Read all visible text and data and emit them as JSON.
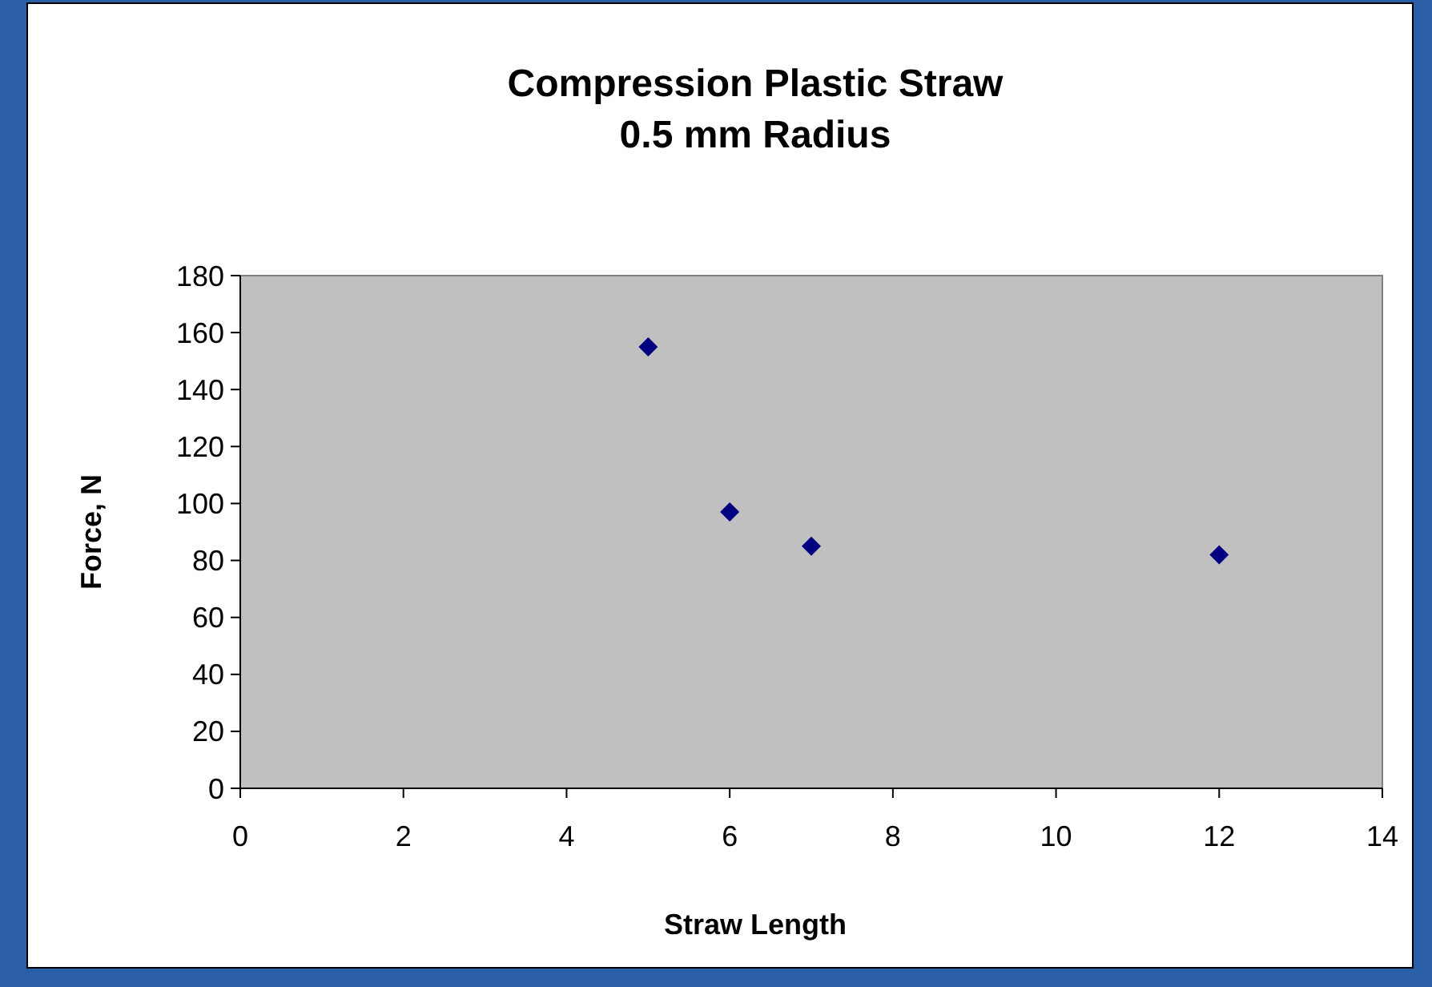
{
  "chart_data": {
    "type": "scatter",
    "title": "Compression Plastic Straw\n0.5 mm Radius",
    "xlabel": "Straw Length",
    "ylabel": "Force, N",
    "x": [
      5,
      6,
      7,
      12
    ],
    "values": [
      155,
      97,
      85,
      82
    ],
    "color": "#000080",
    "marker": "diamond",
    "xlim": [
      0,
      14
    ],
    "xticks": [
      0,
      2,
      4,
      6,
      8,
      10,
      12,
      14
    ],
    "ylim": [
      0,
      180
    ],
    "yticks": [
      0,
      20,
      40,
      60,
      80,
      100,
      120,
      140,
      160,
      180
    ]
  }
}
